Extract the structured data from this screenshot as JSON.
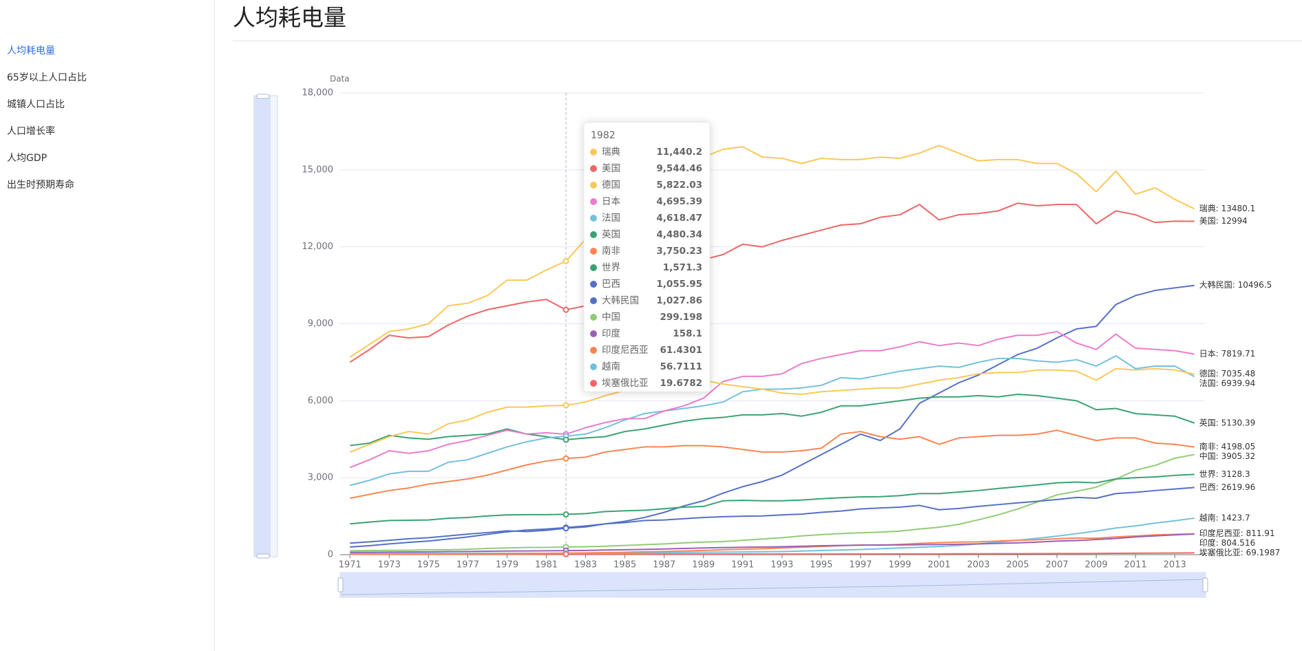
{
  "sidebar": {
    "items": [
      "人均耗电量",
      "65岁以上人口占比",
      "城镇人口占比",
      "人口增长率",
      "人均GDP",
      "出生时预期寿命"
    ]
  },
  "header": {
    "title": "人均耗电量"
  },
  "chart_data": {
    "type": "line",
    "y_label": "Data",
    "x": [
      1971,
      1972,
      1973,
      1974,
      1975,
      1976,
      1977,
      1978,
      1979,
      1980,
      1981,
      1982,
      1983,
      1984,
      1985,
      1986,
      1987,
      1988,
      1989,
      1990,
      1991,
      1992,
      1993,
      1994,
      1995,
      1996,
      1997,
      1998,
      1999,
      2000,
      2001,
      2002,
      2003,
      2004,
      2005,
      2006,
      2007,
      2008,
      2009,
      2010,
      2011,
      2012,
      2013,
      2014
    ],
    "xlim": [
      1970.5,
      2014.5
    ],
    "xticks": [
      1971,
      1973,
      1975,
      1977,
      1979,
      1981,
      1983,
      1985,
      1987,
      1989,
      1991,
      1993,
      1995,
      1997,
      1999,
      2001,
      2003,
      2005,
      2007,
      2009,
      2011,
      2013
    ],
    "ylim": [
      0,
      18000
    ],
    "yticks": [
      0,
      {
        "value": 3000,
        "label": "3,000"
      },
      {
        "value": 6000,
        "label": "6,000"
      },
      {
        "value": 9000,
        "label": "9,000"
      },
      {
        "value": 12000,
        "label": "12,000"
      },
      {
        "value": 15000,
        "label": "15,000"
      },
      {
        "value": 18000,
        "label": "18,000"
      }
    ],
    "grid": true,
    "series": [
      {
        "name": "瑞典",
        "color": "#fac858",
        "end_label": "瑞典: 13480.1",
        "values": [
          7700,
          8200,
          8700,
          8800,
          9000,
          9700,
          9800,
          10100,
          10700,
          10700,
          11100,
          11440.2,
          12300,
          13000,
          13600,
          14100,
          14600,
          15100,
          15500,
          15800,
          15900,
          15500,
          15450,
          15250,
          15450,
          15400,
          15400,
          15500,
          15450,
          15650,
          15950,
          15650,
          15350,
          15400,
          15400,
          15250,
          15250,
          14850,
          14150,
          14950,
          14050,
          14300,
          13850,
          13480.1
        ]
      },
      {
        "name": "美国",
        "color": "#ee6666",
        "end_label": "美国: 12994",
        "values": [
          7500,
          8000,
          8550,
          8450,
          8500,
          8950,
          9300,
          9550,
          9700,
          9850,
          9950,
          9544.46,
          9700,
          10000,
          10350,
          10600,
          10900,
          11200,
          11500,
          11700,
          12100,
          12000,
          12250,
          12450,
          12650,
          12850,
          12900,
          13150,
          13250,
          13650,
          13050,
          13250,
          13300,
          13400,
          13700,
          13600,
          13650,
          13650,
          12900,
          13400,
          13250,
          12950,
          13000,
          12994
        ]
      },
      {
        "name": "德国",
        "color": "#fac858",
        "end_label": "德国: 7035.48",
        "values": [
          4000,
          4300,
          4600,
          4800,
          4700,
          5100,
          5250,
          5550,
          5750,
          5750,
          5800,
          5822.03,
          5950,
          6200,
          6400,
          6500,
          6600,
          6700,
          6800,
          6650,
          6550,
          6450,
          6300,
          6250,
          6350,
          6400,
          6450,
          6500,
          6500,
          6650,
          6800,
          6900,
          7050,
          7100,
          7100,
          7200,
          7200,
          7150,
          6800,
          7250,
          7200,
          7250,
          7200,
          7035.48
        ]
      },
      {
        "name": "日本",
        "color": "#ea7ccc",
        "end_label": "日本: 7819.71",
        "values": [
          3400,
          3700,
          4050,
          3950,
          4050,
          4300,
          4450,
          4650,
          4850,
          4700,
          4750,
          4695.39,
          4950,
          5150,
          5300,
          5300,
          5600,
          5800,
          6100,
          6750,
          6950,
          6950,
          7050,
          7450,
          7650,
          7800,
          7950,
          7950,
          8100,
          8300,
          8150,
          8250,
          8150,
          8400,
          8550,
          8550,
          8700,
          8250,
          8000,
          8600,
          8050,
          8000,
          7950,
          7819.71
        ]
      },
      {
        "name": "法国",
        "color": "#73c0de",
        "end_label": "法国: 6939.94",
        "values": [
          2700,
          2900,
          3150,
          3250,
          3250,
          3600,
          3700,
          3950,
          4200,
          4400,
          4550,
          4618.47,
          4700,
          4950,
          5250,
          5500,
          5600,
          5700,
          5800,
          5950,
          6350,
          6450,
          6450,
          6500,
          6600,
          6900,
          6850,
          7000,
          7150,
          7250,
          7350,
          7300,
          7500,
          7650,
          7650,
          7550,
          7500,
          7600,
          7350,
          7750,
          7250,
          7350,
          7350,
          6939.94
        ]
      },
      {
        "name": "英国",
        "color": "#3ba272",
        "end_label": "英国: 5130.39",
        "values": [
          4250,
          4350,
          4650,
          4550,
          4500,
          4600,
          4650,
          4700,
          4900,
          4700,
          4600,
          4480.34,
          4550,
          4600,
          4800,
          4900,
          5050,
          5200,
          5300,
          5350,
          5450,
          5450,
          5500,
          5400,
          5550,
          5800,
          5800,
          5900,
          6000,
          6100,
          6150,
          6150,
          6200,
          6150,
          6250,
          6200,
          6100,
          6000,
          5650,
          5700,
          5500,
          5450,
          5400,
          5130.39
        ]
      },
      {
        "name": "南非",
        "color": "#fc8452",
        "end_label": "南非: 4198.05",
        "values": [
          2200,
          2350,
          2500,
          2600,
          2750,
          2850,
          2950,
          3100,
          3300,
          3500,
          3650,
          3750.23,
          3800,
          4000,
          4100,
          4200,
          4200,
          4250,
          4250,
          4200,
          4100,
          4000,
          4000,
          4050,
          4150,
          4700,
          4800,
          4600,
          4500,
          4600,
          4300,
          4550,
          4600,
          4650,
          4650,
          4700,
          4850,
          4650,
          4450,
          4550,
          4550,
          4350,
          4300,
          4198.05
        ]
      },
      {
        "name": "世界",
        "color": "#3ba272",
        "end_label": "世界: 3128.3",
        "values": [
          1200,
          1270,
          1330,
          1340,
          1350,
          1420,
          1450,
          1510,
          1550,
          1560,
          1560,
          1571.3,
          1600,
          1680,
          1710,
          1730,
          1790,
          1850,
          1880,
          2100,
          2120,
          2100,
          2100,
          2130,
          2180,
          2220,
          2250,
          2260,
          2300,
          2380,
          2380,
          2440,
          2500,
          2580,
          2650,
          2720,
          2800,
          2830,
          2800,
          2950,
          3000,
          3030,
          3090,
          3128.3
        ]
      },
      {
        "name": "巴西",
        "color": "#5470c6",
        "end_label": "巴西: 2619.96",
        "values": [
          300,
          350,
          420,
          480,
          530,
          610,
          690,
          790,
          890,
          960,
          1000,
          1055.95,
          1120,
          1200,
          1250,
          1330,
          1350,
          1400,
          1450,
          1480,
          1500,
          1510,
          1550,
          1580,
          1650,
          1700,
          1780,
          1820,
          1850,
          1920,
          1750,
          1800,
          1880,
          1950,
          2020,
          2080,
          2150,
          2230,
          2200,
          2380,
          2430,
          2500,
          2560,
          2619.96
        ]
      },
      {
        "name": "大韩民国",
        "color": "#5470c6",
        "end_label": "大韩民国: 10496.5",
        "values": [
          450,
          500,
          560,
          620,
          660,
          730,
          800,
          860,
          930,
          900,
          950,
          1027.86,
          1080,
          1200,
          1300,
          1450,
          1650,
          1900,
          2100,
          2400,
          2650,
          2850,
          3100,
          3500,
          3900,
          4300,
          4700,
          4450,
          4900,
          5900,
          6300,
          6700,
          7000,
          7400,
          7800,
          8050,
          8450,
          8800,
          8900,
          9750,
          10100,
          10300,
          10400,
          10496.5
        ]
      },
      {
        "name": "中国",
        "color": "#91cc75",
        "end_label": "中国: 3905.32",
        "values": [
          150,
          160,
          170,
          170,
          190,
          190,
          210,
          240,
          260,
          280,
          280,
          299.198,
          310,
          330,
          360,
          390,
          420,
          460,
          490,
          510,
          560,
          610,
          660,
          730,
          780,
          820,
          850,
          880,
          920,
          1000,
          1070,
          1180,
          1360,
          1550,
          1780,
          2050,
          2330,
          2470,
          2630,
          2940,
          3290,
          3480,
          3760,
          3905.32
        ]
      },
      {
        "name": "印度",
        "color": "#9a60b4",
        "end_label": "印度: 804.516",
        "values": [
          90,
          95,
          100,
          105,
          110,
          120,
          125,
          135,
          140,
          145,
          150,
          158.1,
          165,
          180,
          190,
          205,
          220,
          240,
          260,
          275,
          290,
          300,
          310,
          330,
          350,
          360,
          370,
          380,
          380,
          390,
          395,
          405,
          420,
          440,
          460,
          490,
          530,
          550,
          590,
          630,
          690,
          730,
          770,
          804.516
        ]
      },
      {
        "name": "印度尼西亚",
        "color": "#fc8452",
        "end_label": "印度尼西亚: 811.91",
        "values": [
          15,
          18,
          20,
          22,
          25,
          28,
          32,
          36,
          40,
          45,
          52,
          61.4301,
          70,
          80,
          95,
          110,
          125,
          145,
          165,
          190,
          210,
          230,
          260,
          290,
          320,
          350,
          380,
          370,
          400,
          440,
          470,
          490,
          500,
          530,
          560,
          580,
          620,
          650,
          640,
          690,
          730,
          770,
          790,
          811.91
        ]
      },
      {
        "name": "越南",
        "color": "#73c0de",
        "end_label": "越南: 1423.7",
        "values": [
          45,
          46,
          47,
          48,
          49,
          50,
          51,
          52,
          53,
          54,
          55,
          56.7111,
          58,
          62,
          68,
          74,
          80,
          88,
          95,
          100,
          105,
          110,
          120,
          140,
          160,
          180,
          200,
          230,
          260,
          290,
          320,
          360,
          420,
          490,
          560,
          640,
          720,
          820,
          920,
          1040,
          1120,
          1230,
          1320,
          1423.7
        ]
      },
      {
        "name": "埃塞俄比亚",
        "color": "#ee6666",
        "end_label": "埃塞俄比亚: 69.1987",
        "values": [
          20,
          20,
          20,
          21,
          21,
          21,
          21,
          21,
          20,
          20,
          20,
          19.6782,
          20,
          20,
          21,
          21,
          22,
          22,
          23,
          23,
          23,
          24,
          24,
          25,
          25,
          26,
          27,
          28,
          29,
          30,
          31,
          32,
          34,
          36,
          38,
          40,
          42,
          45,
          48,
          52,
          56,
          60,
          64,
          69.1987
        ]
      }
    ],
    "tooltip": {
      "x": 1982,
      "labels": [
        "11,440.2",
        "9,544.46",
        "5,822.03",
        "4,695.39",
        "4,618.47",
        "4,480.34",
        "3,750.23",
        "1,571.3",
        "1,055.95",
        "1,027.86",
        "299.198",
        "158.1",
        "61.4301",
        "56.7111",
        "19.6782"
      ]
    }
  }
}
